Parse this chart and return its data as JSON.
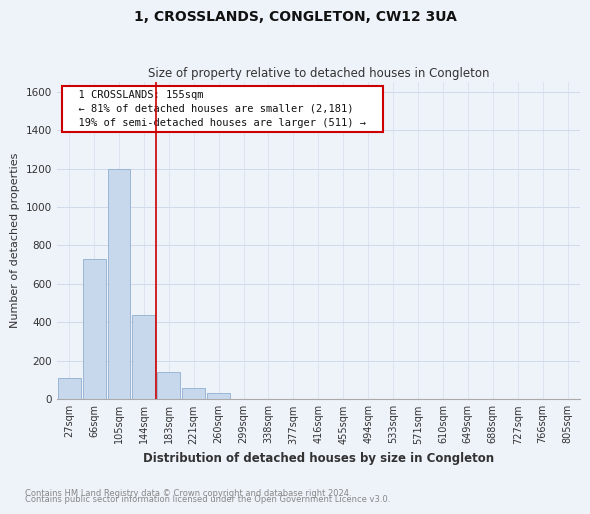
{
  "title": "1, CROSSLANDS, CONGLETON, CW12 3UA",
  "subtitle": "Size of property relative to detached houses in Congleton",
  "xlabel": "Distribution of detached houses by size in Congleton",
  "ylabel": "Number of detached properties",
  "footnote1": "Contains HM Land Registry data © Crown copyright and database right 2024.",
  "footnote2": "Contains public sector information licensed under the Open Government Licence v3.0.",
  "bar_labels": [
    "27sqm",
    "66sqm",
    "105sqm",
    "144sqm",
    "183sqm",
    "221sqm",
    "260sqm",
    "299sqm",
    "338sqm",
    "377sqm",
    "416sqm",
    "455sqm",
    "494sqm",
    "533sqm",
    "571sqm",
    "610sqm",
    "649sqm",
    "688sqm",
    "727sqm",
    "766sqm",
    "805sqm"
  ],
  "bar_values": [
    110,
    730,
    1200,
    440,
    140,
    60,
    35,
    0,
    0,
    0,
    0,
    0,
    0,
    0,
    0,
    0,
    0,
    0,
    0,
    0,
    0
  ],
  "bar_color": "#c8d8ec",
  "bar_edge_color": "#90aed0",
  "marker_label_title": "1 CROSSLANDS: 155sqm",
  "annotation_line1": "← 81% of detached houses are smaller (2,181)",
  "annotation_line2": "19% of semi-detached houses are larger (511) →",
  "marker_color": "#cc0000",
  "ylim": [
    0,
    1650
  ],
  "yticks": [
    0,
    200,
    400,
    600,
    800,
    1000,
    1200,
    1400,
    1600
  ],
  "annotation_box_facecolor": "#ffffff",
  "annotation_box_edgecolor": "#cc0000",
  "grid_color": "#d0daea",
  "background_color": "#eef2f9",
  "title_fontsize": 10,
  "subtitle_fontsize": 8.5,
  "ylabel_fontsize": 8,
  "xlabel_fontsize": 8.5,
  "tick_fontsize": 7,
  "annotation_fontsize": 7.5,
  "footnote_fontsize": 6
}
